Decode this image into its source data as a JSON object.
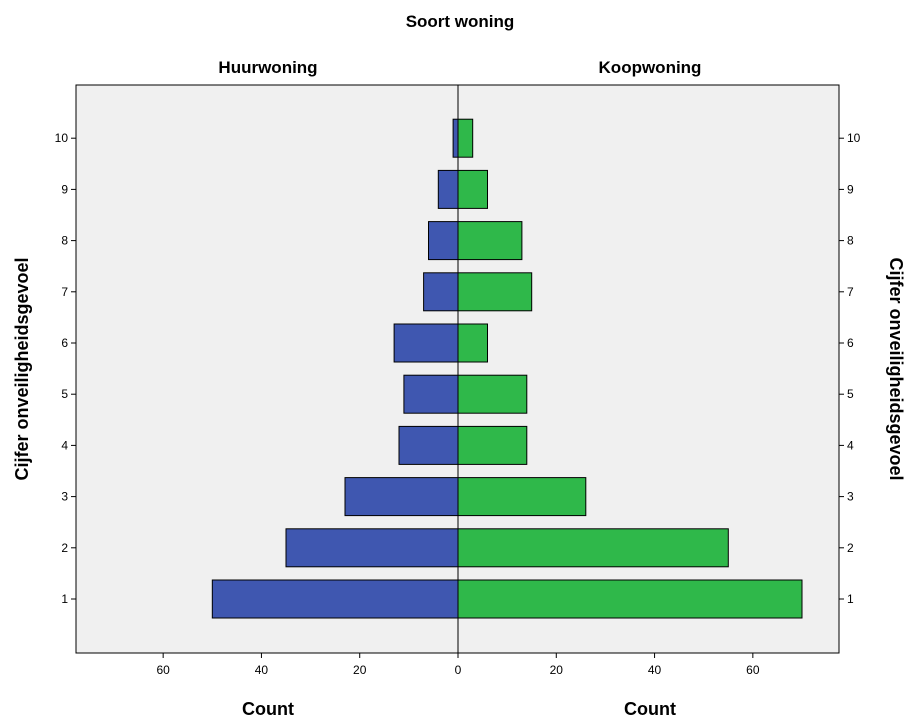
{
  "chart_data": {
    "type": "bar",
    "orientation": "population-pyramid",
    "title": "Soort woning",
    "panels": [
      "Huurwoning",
      "Koopwoning"
    ],
    "ylabel": "Cijfer onveiligheidsgevoel",
    "xlabel": "Count",
    "categories": [
      "1",
      "2",
      "3",
      "4",
      "5",
      "6",
      "7",
      "8",
      "9",
      "10"
    ],
    "series": [
      {
        "name": "Huurwoning",
        "color": "#3f57b0",
        "side": "left",
        "values": [
          50,
          35,
          23,
          12,
          11,
          13,
          7,
          6,
          4,
          1
        ]
      },
      {
        "name": "Koopwoning",
        "color": "#2fb84a",
        "side": "right",
        "values": [
          70,
          55,
          26,
          14,
          14,
          6,
          15,
          13,
          6,
          3
        ]
      }
    ],
    "xticks": [
      0,
      20,
      40,
      60
    ],
    "xlim": [
      0,
      75
    ],
    "background": "#f0f0f0",
    "grid": false
  }
}
